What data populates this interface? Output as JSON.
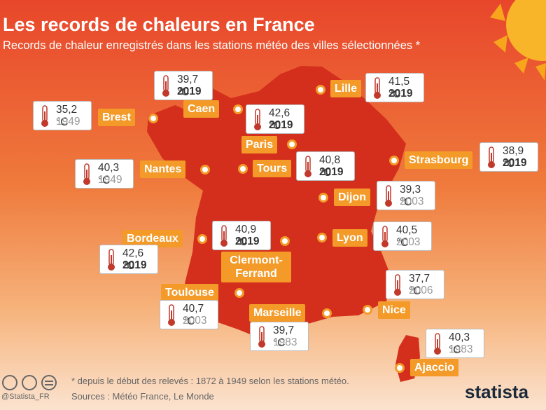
{
  "header": {
    "title": "Les records de chaleurs en France",
    "subtitle": "Records de chaleur enregistrés dans les stations météo des villes sélectionnées *"
  },
  "cities": [
    {
      "name": "Lille",
      "temp": "41,5 °C",
      "year": "2019"
    },
    {
      "name": "Caen",
      "temp": "39,7 °C",
      "year": "2019"
    },
    {
      "name": "Brest",
      "temp": "35,2 °C",
      "year": "1949"
    },
    {
      "name": "Paris",
      "temp": "42,6 °C",
      "year": "2019"
    },
    {
      "name": "Tours",
      "temp": "40,8 °C",
      "year": "2019"
    },
    {
      "name": "Nantes",
      "temp": "40,3 °C",
      "year": "1949"
    },
    {
      "name": "Strasbourg",
      "temp": "38,9 °C",
      "year": "2019"
    },
    {
      "name": "Dijon",
      "temp": "39,3 °C",
      "year": "2003"
    },
    {
      "name": "Lyon",
      "temp": "40,5 °C",
      "year": "2003"
    },
    {
      "name": "Bordeaux",
      "temp": "42,6 °C",
      "year": "2019"
    },
    {
      "name": "Clermont-Ferrand",
      "temp": "40,9 °C",
      "year": "2019"
    },
    {
      "name": "Toulouse",
      "temp": "40,7 °C",
      "year": "2003"
    },
    {
      "name": "Marseille",
      "temp": "39,7 °C",
      "year": "1983"
    },
    {
      "name": "Nice",
      "temp": "37,7 °C",
      "year": "2006"
    },
    {
      "name": "Ajaccio",
      "temp": "40,3 °C",
      "year": "1983"
    }
  ],
  "footer": {
    "note": "* depuis le début des relevés : 1872 à 1949 selon les stations météo.",
    "sources": "Sources : Météo France, Le Monde",
    "handle": "@Statista_FR",
    "brand": "statista"
  }
}
